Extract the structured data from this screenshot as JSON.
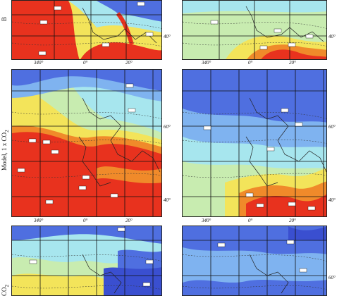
{
  "row_labels": {
    "top": "B",
    "middle": "Model, 1 x CO",
    "middle_sub": "2",
    "bottom": "CO",
    "bottom_sub": "2"
  },
  "ticks": {
    "lon_340": "340°",
    "lon_0": "0°",
    "lon_20": "20°",
    "lat_40": "40°",
    "lat_60": "60°"
  },
  "colors": {
    "red": "#e8321e",
    "orange": "#f08a2a",
    "yellow": "#f3e45a",
    "lightgreen": "#c8ecb0",
    "cyan": "#a7e6ee",
    "lightblue": "#7fb3f0",
    "blue": "#4f6fe0",
    "darkblue": "#3a4fd0",
    "grid": "#111111",
    "coast": "#222222"
  },
  "panels": [
    {
      "id": "top-left",
      "label_boxes": [
        "1000",
        "1000",
        "1000",
        "1000",
        "1000",
        "1000"
      ]
    },
    {
      "id": "top-right",
      "label_boxes": [
        "1000",
        "1000",
        "1000",
        "1000",
        "1000"
      ]
    },
    {
      "id": "middle-left",
      "label_boxes": [
        "1000",
        "1000",
        "1000",
        "1000",
        "1000",
        "1000",
        "1000",
        "1000",
        "1000",
        "1000"
      ]
    },
    {
      "id": "middle-right",
      "label_boxes": [
        "1000",
        "1000",
        "1000",
        "1000",
        "1000",
        "1000",
        "1000",
        "1000"
      ]
    },
    {
      "id": "bottom-left",
      "label_boxes": [
        "1000",
        "1000",
        "1000",
        "1000"
      ]
    },
    {
      "id": "bottom-right",
      "label_boxes": [
        "1000",
        "1000",
        "1000"
      ]
    }
  ]
}
